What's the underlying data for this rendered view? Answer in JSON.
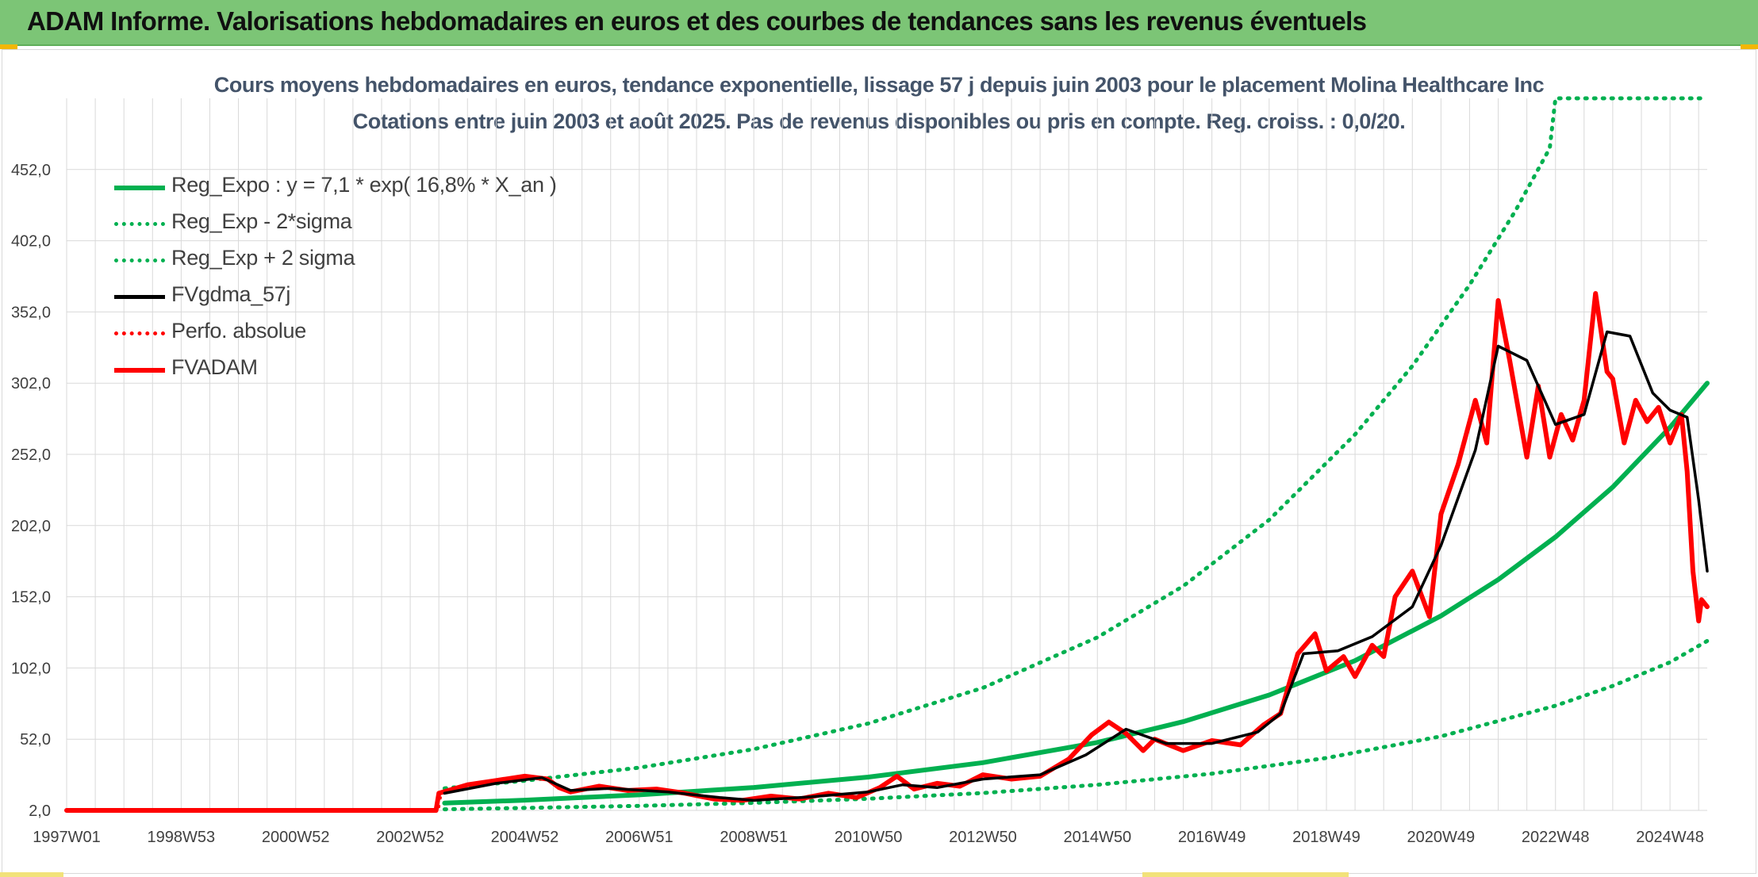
{
  "header": {
    "title": "ADAM Informe. Valorisations hebdomadaires en euros et des courbes de tendances sans les revenus éventuels"
  },
  "colors": {
    "banner": "#7cc576",
    "reg_expo": "#00b050",
    "bands": "#00b050",
    "fvgdma": "#000000",
    "perfo": "#ff0000",
    "fvadam": "#ff0000",
    "grid": "#d9d9d9",
    "title_text": "#44546a"
  },
  "chart_data": {
    "type": "line",
    "title": "Cours moyens hebdomadaires en euros, tendance exponentielle, lissage 57 j depuis juin 2003 pour le placement Molina Healthcare Inc",
    "subtitle": "Cotations entre juin 2003 et août 2025. Pas de revenus disponibles ou pris en compte. Reg. croiss. : 0,0/20.",
    "xlabel": "",
    "ylabel": "",
    "x_range": [
      1997.0,
      2025.65
    ],
    "ylim": [
      2.0,
      502.0
    ],
    "y_ticks": [
      "2,0",
      "52,0",
      "102,0",
      "152,0",
      "202,0",
      "252,0",
      "302,0",
      "352,0",
      "402,0",
      "452,0"
    ],
    "y_tick_values": [
      2,
      52,
      102,
      152,
      202,
      252,
      302,
      352,
      402,
      452
    ],
    "x_ticks": [
      "1997W01",
      "1998W53",
      "2000W52",
      "2002W52",
      "2004W52",
      "2006W51",
      "2008W51",
      "2010W50",
      "2012W50",
      "2014W50",
      "2016W49",
      "2018W49",
      "2020W49",
      "2022W48",
      "2024W48"
    ],
    "x_tick_values": [
      1997.0,
      1999.0,
      2001.0,
      2003.0,
      2005.0,
      2007.0,
      2009.0,
      2011.0,
      2013.0,
      2015.0,
      2017.0,
      2019.0,
      2021.0,
      2023.0,
      2025.0
    ],
    "grid": true,
    "legend_position": "top-left",
    "legend": [
      "Reg_Expo : y = 7,1 * exp( 16,8% *  X_an )",
      "Reg_Exp - 2*sigma",
      "Reg_Exp + 2 sigma",
      "FVgdma_57j",
      "Perfo. absolue",
      "FVADAM"
    ],
    "series": [
      {
        "name": "Reg_Expo : y = 7,1 * exp( 16,8% *  X_an )",
        "style": "solid-thick",
        "color": "#00b050",
        "x": [
          2003.6,
          2005.0,
          2007.0,
          2009.0,
          2011.0,
          2013.0,
          2015.0,
          2016.5,
          2018.0,
          2019.5,
          2021.0,
          2022.0,
          2023.0,
          2024.0,
          2025.0,
          2025.65
        ],
        "values": [
          7.1,
          9.2,
          12.9,
          18.1,
          25.4,
          35.5,
          49.7,
          64.3,
          83.0,
          107.2,
          138.6,
          164.0,
          194.0,
          229.0,
          271.0,
          302.0
        ]
      },
      {
        "name": "Reg_Exp - 2*sigma",
        "style": "dotted",
        "color": "#00b050",
        "x": [
          2003.6,
          2005.0,
          2007.0,
          2009.0,
          2011.0,
          2013.0,
          2015.0,
          2017.0,
          2019.0,
          2021.0,
          2023.0,
          2024.0,
          2025.0,
          2025.65
        ],
        "values": [
          2.8,
          3.7,
          5.2,
          7.3,
          10.2,
          14.2,
          20.0,
          27.8,
          38.8,
          54.0,
          75.5,
          89.4,
          106.0,
          121.0
        ]
      },
      {
        "name": "Reg_Exp + 2 sigma",
        "style": "dotted",
        "color": "#00b050",
        "x": [
          2003.6,
          2005.0,
          2007.0,
          2009.0,
          2011.0,
          2013.0,
          2015.0,
          2016.5,
          2018.0,
          2019.5,
          2020.5,
          2021.5,
          2022.3,
          2022.9,
          2023.0,
          2025.65
        ],
        "values": [
          17.5,
          22.8,
          32.0,
          45.0,
          63.0,
          88.0,
          123.5,
          159.5,
          206.0,
          266.0,
          314.0,
          371.0,
          423.0,
          467.0,
          502.0,
          502.0
        ]
      },
      {
        "name": "FVgdma_57j",
        "style": "solid",
        "color": "#000000",
        "x": [
          2003.6,
          2004.5,
          2005.3,
          2005.8,
          2006.5,
          2007.5,
          2008.4,
          2009.0,
          2010.0,
          2011.0,
          2011.6,
          2012.2,
          2013.0,
          2014.0,
          2014.8,
          2015.5,
          2016.2,
          2017.0,
          2017.8,
          2018.2,
          2018.6,
          2019.2,
          2019.8,
          2020.5,
          2021.0,
          2021.6,
          2022.0,
          2022.5,
          2023.0,
          2023.5,
          2023.9,
          2024.3,
          2024.7,
          2025.0,
          2025.3,
          2025.5,
          2025.65
        ],
        "values": [
          14.0,
          21.0,
          25.0,
          16.0,
          17.5,
          15.0,
          11.0,
          9.0,
          11.5,
          15.0,
          20.0,
          18.0,
          24.0,
          27.0,
          41.0,
          59.0,
          49.0,
          49.0,
          57.0,
          70.0,
          112.0,
          114.0,
          124.0,
          145.0,
          188.0,
          255.0,
          328.0,
          318.0,
          273.0,
          280.0,
          338.0,
          335.0,
          295.0,
          283.0,
          278.0,
          220.0,
          170.0
        ]
      },
      {
        "name": "Perfo. absolue",
        "style": "dotted",
        "color": "#ff0000",
        "x": [
          1997.0,
          2003.5,
          2003.55
        ],
        "values": [
          2.0,
          2.0,
          14.0
        ]
      },
      {
        "name": "FVADAM",
        "style": "solid-thick",
        "color": "#ff0000",
        "x": [
          1997.0,
          2003.45,
          2003.5,
          2004.0,
          2004.5,
          2005.0,
          2005.4,
          2005.6,
          2005.8,
          2006.3,
          2006.8,
          2007.3,
          2007.8,
          2008.3,
          2008.8,
          2009.3,
          2009.8,
          2010.3,
          2010.8,
          2011.2,
          2011.5,
          2011.8,
          2012.2,
          2012.6,
          2013.0,
          2013.5,
          2014.0,
          2014.5,
          2014.9,
          2015.2,
          2015.5,
          2015.8,
          2016.0,
          2016.5,
          2017.0,
          2017.5,
          2017.9,
          2018.2,
          2018.5,
          2018.8,
          2019.0,
          2019.3,
          2019.5,
          2019.8,
          2020.0,
          2020.2,
          2020.5,
          2020.8,
          2021.0,
          2021.3,
          2021.6,
          2021.8,
          2022.0,
          2022.2,
          2022.5,
          2022.7,
          2022.9,
          2023.1,
          2023.3,
          2023.5,
          2023.7,
          2023.9,
          2024.0,
          2024.2,
          2024.4,
          2024.6,
          2024.8,
          2025.0,
          2025.2,
          2025.3,
          2025.4,
          2025.5,
          2025.55,
          2025.65
        ],
        "values": [
          2.0,
          2.0,
          14.0,
          20.0,
          23.0,
          26.0,
          24.0,
          18.0,
          15.0,
          19.0,
          16.0,
          17.0,
          14.0,
          10.0,
          9.0,
          12.0,
          10.0,
          14.0,
          11.0,
          18.0,
          26.0,
          17.0,
          21.0,
          19.0,
          27.0,
          24.0,
          26.0,
          38.0,
          55.0,
          64.0,
          56.0,
          44.0,
          52.0,
          44.0,
          51.0,
          48.0,
          62.0,
          70.0,
          112.0,
          126.0,
          100.0,
          110.0,
          96.0,
          118.0,
          110.0,
          152.0,
          170.0,
          138.0,
          210.0,
          245.0,
          290.0,
          260.0,
          360.0,
          318.0,
          250.0,
          300.0,
          250.0,
          280.0,
          262.0,
          290.0,
          365.0,
          310.0,
          305.0,
          260.0,
          290.0,
          275.0,
          285.0,
          260.0,
          280.0,
          240.0,
          170.0,
          135.0,
          150.0,
          145.0
        ]
      }
    ]
  }
}
